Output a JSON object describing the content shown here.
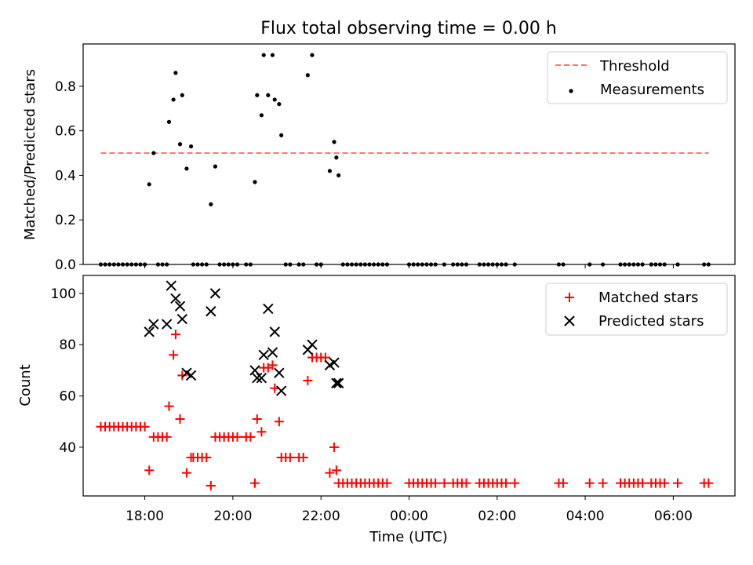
{
  "chart_data": [
    {
      "type": "scatter",
      "title": "Flux total observing time = 0.00 h",
      "xlabel": "",
      "ylabel": "Matched/Predicted stars",
      "xlim": [
        16.6,
        31.4
      ],
      "ylim": [
        0,
        0.99
      ],
      "yticks": [
        0.0,
        0.2,
        0.4,
        0.6,
        0.8
      ],
      "ytick_labels": [
        "0.0",
        "0.2",
        "0.4",
        "0.6",
        "0.8"
      ],
      "legend_position": "top-right",
      "threshold": {
        "name": "Threshold",
        "value": 0.5,
        "x": [
          17.0,
          30.8
        ],
        "color": "#ff7070"
      },
      "series": [
        {
          "name": "Measurements",
          "marker": "dot",
          "color": "#000000",
          "points": [
            [
              17.0,
              0
            ],
            [
              17.1,
              0
            ],
            [
              17.2,
              0
            ],
            [
              17.3,
              0
            ],
            [
              17.4,
              0
            ],
            [
              17.5,
              0
            ],
            [
              17.6,
              0
            ],
            [
              17.7,
              0
            ],
            [
              17.8,
              0
            ],
            [
              17.9,
              0
            ],
            [
              18.0,
              0
            ],
            [
              18.3,
              0
            ],
            [
              18.4,
              0
            ],
            [
              18.5,
              0
            ],
            [
              18.1,
              0.36
            ],
            [
              18.2,
              0.5
            ],
            [
              18.55,
              0.64
            ],
            [
              18.65,
              0.74
            ],
            [
              18.7,
              0.86
            ],
            [
              18.8,
              0.54
            ],
            [
              18.85,
              0.76
            ],
            [
              18.95,
              0.43
            ],
            [
              19.05,
              0.53
            ],
            [
              19.1,
              0
            ],
            [
              19.2,
              0
            ],
            [
              19.3,
              0
            ],
            [
              19.4,
              0
            ],
            [
              19.5,
              0.27
            ],
            [
              19.6,
              0.44
            ],
            [
              19.7,
              0
            ],
            [
              19.8,
              0
            ],
            [
              19.9,
              0
            ],
            [
              20.0,
              0
            ],
            [
              20.1,
              0
            ],
            [
              20.3,
              0
            ],
            [
              20.4,
              0
            ],
            [
              20.5,
              0.37
            ],
            [
              20.55,
              0.76
            ],
            [
              20.65,
              0.67
            ],
            [
              20.7,
              0.94
            ],
            [
              20.8,
              0.76
            ],
            [
              20.9,
              0.94
            ],
            [
              20.95,
              0.74
            ],
            [
              21.05,
              0.72
            ],
            [
              21.1,
              0.58
            ],
            [
              21.2,
              0
            ],
            [
              21.3,
              0
            ],
            [
              21.5,
              0
            ],
            [
              21.6,
              0
            ],
            [
              21.7,
              0.85
            ],
            [
              21.8,
              0.94
            ],
            [
              21.9,
              0
            ],
            [
              22.0,
              0
            ],
            [
              22.2,
              0.42
            ],
            [
              22.3,
              0.55
            ],
            [
              22.35,
              0.48
            ],
            [
              22.4,
              0.4
            ],
            [
              22.5,
              0
            ],
            [
              22.6,
              0
            ],
            [
              22.7,
              0
            ],
            [
              22.8,
              0
            ],
            [
              22.9,
              0
            ],
            [
              23.0,
              0
            ],
            [
              23.1,
              0
            ],
            [
              23.2,
              0
            ],
            [
              23.3,
              0
            ],
            [
              23.4,
              0
            ],
            [
              23.5,
              0
            ],
            [
              24.0,
              0
            ],
            [
              24.1,
              0
            ],
            [
              24.2,
              0
            ],
            [
              24.3,
              0
            ],
            [
              24.4,
              0
            ],
            [
              24.5,
              0
            ],
            [
              24.6,
              0
            ],
            [
              24.8,
              0
            ],
            [
              25.0,
              0
            ],
            [
              25.1,
              0
            ],
            [
              25.2,
              0
            ],
            [
              25.3,
              0
            ],
            [
              25.6,
              0
            ],
            [
              25.7,
              0
            ],
            [
              25.8,
              0
            ],
            [
              25.9,
              0
            ],
            [
              26.0,
              0
            ],
            [
              26.1,
              0
            ],
            [
              26.2,
              0
            ],
            [
              26.4,
              0
            ],
            [
              27.4,
              0
            ],
            [
              27.5,
              0
            ],
            [
              28.1,
              0
            ],
            [
              28.4,
              0
            ],
            [
              28.8,
              0
            ],
            [
              28.9,
              0
            ],
            [
              29.0,
              0
            ],
            [
              29.1,
              0
            ],
            [
              29.2,
              0
            ],
            [
              29.3,
              0
            ],
            [
              29.5,
              0
            ],
            [
              29.6,
              0
            ],
            [
              29.7,
              0
            ],
            [
              29.8,
              0
            ],
            [
              30.1,
              0
            ],
            [
              30.7,
              0
            ],
            [
              30.8,
              0
            ]
          ]
        }
      ]
    },
    {
      "type": "scatter",
      "title": "",
      "xlabel": "Time (UTC)",
      "ylabel": "Count",
      "xlim": [
        16.6,
        31.4
      ],
      "ylim": [
        21,
        107
      ],
      "xticks": [
        18,
        20,
        22,
        24,
        26,
        28,
        30
      ],
      "xtick_labels": [
        "18:00",
        "20:00",
        "22:00",
        "00:00",
        "02:00",
        "04:00",
        "06:00"
      ],
      "yticks": [
        40,
        60,
        80,
        100
      ],
      "ytick_labels": [
        "40",
        "60",
        "80",
        "100"
      ],
      "legend_position": "top-right",
      "series": [
        {
          "name": "Matched stars",
          "marker": "plus",
          "color": "#ff0000",
          "points": [
            [
              17.0,
              48
            ],
            [
              17.1,
              48
            ],
            [
              17.2,
              48
            ],
            [
              17.3,
              48
            ],
            [
              17.4,
              48
            ],
            [
              17.5,
              48
            ],
            [
              17.6,
              48
            ],
            [
              17.7,
              48
            ],
            [
              17.8,
              48
            ],
            [
              17.9,
              48
            ],
            [
              18.0,
              48
            ],
            [
              18.1,
              31
            ],
            [
              18.2,
              44
            ],
            [
              18.3,
              44
            ],
            [
              18.4,
              44
            ],
            [
              18.5,
              44
            ],
            [
              18.55,
              56
            ],
            [
              18.65,
              76
            ],
            [
              18.7,
              84
            ],
            [
              18.8,
              51
            ],
            [
              18.85,
              68
            ],
            [
              18.95,
              30
            ],
            [
              19.05,
              36
            ],
            [
              19.1,
              36
            ],
            [
              19.2,
              36
            ],
            [
              19.3,
              36
            ],
            [
              19.4,
              36
            ],
            [
              19.5,
              25
            ],
            [
              19.6,
              44
            ],
            [
              19.7,
              44
            ],
            [
              19.8,
              44
            ],
            [
              19.9,
              44
            ],
            [
              20.0,
              44
            ],
            [
              20.1,
              44
            ],
            [
              20.3,
              44
            ],
            [
              20.4,
              44
            ],
            [
              20.5,
              26
            ],
            [
              20.55,
              51
            ],
            [
              20.65,
              46
            ],
            [
              20.7,
              71
            ],
            [
              20.8,
              71
            ],
            [
              20.9,
              72
            ],
            [
              20.95,
              63
            ],
            [
              21.05,
              50
            ],
            [
              21.1,
              36
            ],
            [
              21.2,
              36
            ],
            [
              21.3,
              36
            ],
            [
              21.5,
              36
            ],
            [
              21.6,
              36
            ],
            [
              21.7,
              66
            ],
            [
              21.8,
              75
            ],
            [
              21.9,
              75
            ],
            [
              22.0,
              75
            ],
            [
              22.1,
              75
            ],
            [
              22.2,
              30
            ],
            [
              22.3,
              40
            ],
            [
              22.35,
              31
            ],
            [
              22.4,
              26
            ],
            [
              22.5,
              26
            ],
            [
              22.6,
              26
            ],
            [
              22.7,
              26
            ],
            [
              22.8,
              26
            ],
            [
              22.9,
              26
            ],
            [
              23.0,
              26
            ],
            [
              23.1,
              26
            ],
            [
              23.2,
              26
            ],
            [
              23.3,
              26
            ],
            [
              23.4,
              26
            ],
            [
              23.5,
              26
            ],
            [
              24.0,
              26
            ],
            [
              24.1,
              26
            ],
            [
              24.2,
              26
            ],
            [
              24.3,
              26
            ],
            [
              24.4,
              26
            ],
            [
              24.5,
              26
            ],
            [
              24.6,
              26
            ],
            [
              24.8,
              26
            ],
            [
              25.0,
              26
            ],
            [
              25.1,
              26
            ],
            [
              25.2,
              26
            ],
            [
              25.3,
              26
            ],
            [
              25.6,
              26
            ],
            [
              25.7,
              26
            ],
            [
              25.8,
              26
            ],
            [
              25.9,
              26
            ],
            [
              26.0,
              26
            ],
            [
              26.1,
              26
            ],
            [
              26.2,
              26
            ],
            [
              26.4,
              26
            ],
            [
              27.4,
              26
            ],
            [
              27.5,
              26
            ],
            [
              28.1,
              26
            ],
            [
              28.4,
              26
            ],
            [
              28.8,
              26
            ],
            [
              28.9,
              26
            ],
            [
              29.0,
              26
            ],
            [
              29.1,
              26
            ],
            [
              29.2,
              26
            ],
            [
              29.3,
              26
            ],
            [
              29.5,
              26
            ],
            [
              29.6,
              26
            ],
            [
              29.7,
              26
            ],
            [
              29.8,
              26
            ],
            [
              30.1,
              26
            ],
            [
              30.7,
              26
            ],
            [
              30.8,
              26
            ]
          ]
        },
        {
          "name": "Predicted stars",
          "marker": "x",
          "color": "#000000",
          "points": [
            [
              18.1,
              85
            ],
            [
              18.2,
              88
            ],
            [
              18.5,
              88
            ],
            [
              18.6,
              103
            ],
            [
              18.7,
              98
            ],
            [
              18.8,
              95
            ],
            [
              18.85,
              90
            ],
            [
              18.95,
              69
            ],
            [
              19.05,
              68
            ],
            [
              19.5,
              93
            ],
            [
              19.6,
              100
            ],
            [
              20.5,
              70
            ],
            [
              20.55,
              67
            ],
            [
              20.65,
              67
            ],
            [
              20.7,
              76
            ],
            [
              20.8,
              94
            ],
            [
              20.9,
              77
            ],
            [
              20.95,
              85
            ],
            [
              21.05,
              69
            ],
            [
              21.1,
              62
            ],
            [
              21.7,
              78
            ],
            [
              21.8,
              80
            ],
            [
              22.2,
              72
            ],
            [
              22.3,
              73
            ],
            [
              22.35,
              65
            ],
            [
              22.4,
              65
            ]
          ]
        }
      ]
    }
  ]
}
